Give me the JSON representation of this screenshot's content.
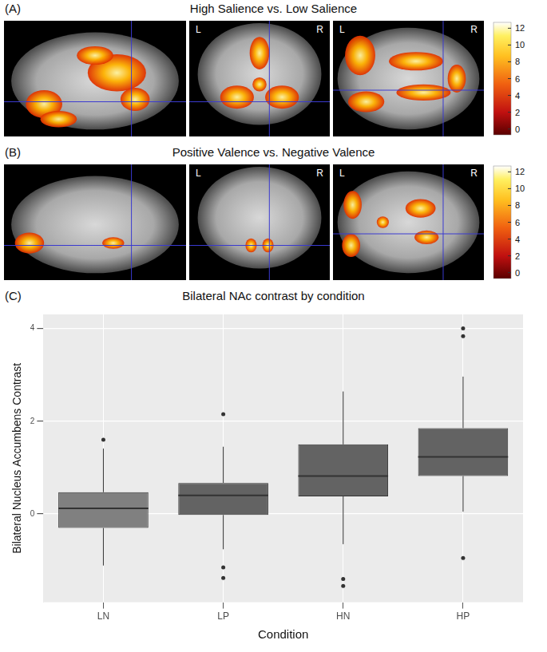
{
  "brain_panels": [
    {
      "panel": "(A)",
      "title": "High Salience vs. Low Salience",
      "orientation_labels": [
        "L",
        "R"
      ],
      "colorbar": {
        "range": [
          -0.7,
          12.7
        ],
        "ticks": [
          0,
          2,
          4,
          6,
          8,
          10,
          12
        ]
      }
    },
    {
      "panel": "(B)",
      "title": "Positive Valence vs. Negative Valence",
      "orientation_labels": [
        "L",
        "R"
      ],
      "colorbar": {
        "range": [
          -0.7,
          12.7
        ],
        "ticks": [
          0,
          2,
          4,
          6,
          8,
          10,
          12
        ]
      }
    }
  ],
  "chart_data": {
    "type": "box",
    "annotations": [
      "(C)"
    ],
    "title": "Bilateral NAc contrast by condition",
    "x_label": "Condition",
    "y_label": "Bilateral Nucleus Accumbens Contrast",
    "categories": [
      "LN",
      "LP",
      "HN",
      "HP"
    ],
    "boxes": [
      {
        "min": -1.11,
        "q1": -0.3,
        "median": 0.12,
        "q3": 0.47,
        "max": 1.41,
        "outliers": [
          1.6
        ]
      },
      {
        "min": -0.76,
        "q1": -0.02,
        "median": 0.4,
        "q3": 0.67,
        "max": 1.45,
        "outliers": [
          2.15,
          -1.15,
          -1.38
        ]
      },
      {
        "min": -0.65,
        "q1": 0.38,
        "median": 0.82,
        "q3": 1.5,
        "max": 2.64,
        "outliers": [
          -1.4,
          -1.55
        ]
      },
      {
        "min": 0.05,
        "q1": 0.82,
        "median": 1.23,
        "q3": 1.85,
        "max": 2.96,
        "outliers": [
          4.0,
          3.83,
          -0.95
        ]
      }
    ],
    "colors": [
      "#808080",
      "#636363",
      "#636363",
      "#636363"
    ],
    "ylim": [
      -1.9,
      4.3
    ],
    "yticks": [
      0,
      2,
      4
    ],
    "grid": true
  }
}
